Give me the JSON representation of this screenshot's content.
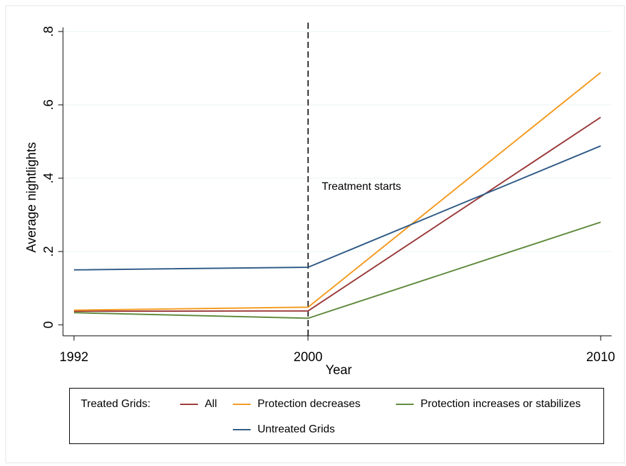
{
  "chart_data": {
    "type": "line",
    "title": "",
    "xlabel": "Year",
    "ylabel": "Average nightlights",
    "x": [
      1992,
      2000,
      2010
    ],
    "x_ticks": [
      "1992",
      "2000",
      "2010"
    ],
    "y_ticks": [
      "0",
      ".2",
      ".4",
      ".6",
      ".8"
    ],
    "y_tick_values": [
      0,
      0.2,
      0.4,
      0.6,
      0.8
    ],
    "xlim": [
      1992,
      2010
    ],
    "ylim": [
      0,
      0.8
    ],
    "grid": "horizontal",
    "vline": {
      "x": 2000,
      "style": "dashed",
      "label": "Treatment starts"
    },
    "series": [
      {
        "name": "All",
        "color": "#9b3a3a",
        "values": [
          0.037,
          0.038,
          0.566
        ]
      },
      {
        "name": "Protection decreases",
        "color": "#f39a1f",
        "values": [
          0.04,
          0.048,
          0.688
        ]
      },
      {
        "name": "Protection increases or stabilizes",
        "color": "#5f8a3c",
        "values": [
          0.033,
          0.018,
          0.28
        ]
      },
      {
        "name": "Untreated Grids",
        "color": "#2f5a86",
        "values": [
          0.15,
          0.157,
          0.488
        ]
      }
    ],
    "legend": {
      "position": "bottom",
      "title": "Treated Grids:",
      "items": [
        "All",
        "Protection decreases",
        "Protection increases or stabilizes",
        "Untreated Grids"
      ]
    }
  }
}
